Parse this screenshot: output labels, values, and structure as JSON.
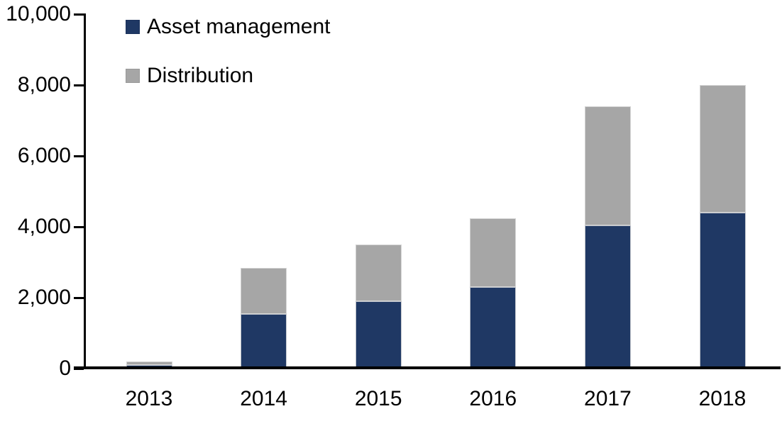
{
  "chart_data": {
    "type": "bar",
    "stacked": true,
    "title": "",
    "xlabel": "",
    "ylabel": "",
    "categories": [
      "2013",
      "2014",
      "2015",
      "2016",
      "2017",
      "2018"
    ],
    "series": [
      {
        "name": "Asset management",
        "color": "#1F3864",
        "values": [
          100,
          1550,
          1900,
          2300,
          4050,
          4400
        ]
      },
      {
        "name": "Distribution",
        "color": "#A6A6A6",
        "values": [
          100,
          1300,
          1600,
          1950,
          3350,
          3600
        ]
      }
    ],
    "stack_totals": [
      200,
      2850,
      3500,
      4250,
      7400,
      8000
    ],
    "y_axis": {
      "min": 0,
      "max": 10000,
      "tick_interval": 2000,
      "tick_labels": [
        "0",
        "2,000",
        "4,000",
        "6,000",
        "8,000",
        "10,000"
      ]
    },
    "legend_position": "top-left",
    "grid": false,
    "background_color": "#FFFFFF",
    "axis_color": "#000000",
    "text_color": "#000000"
  }
}
